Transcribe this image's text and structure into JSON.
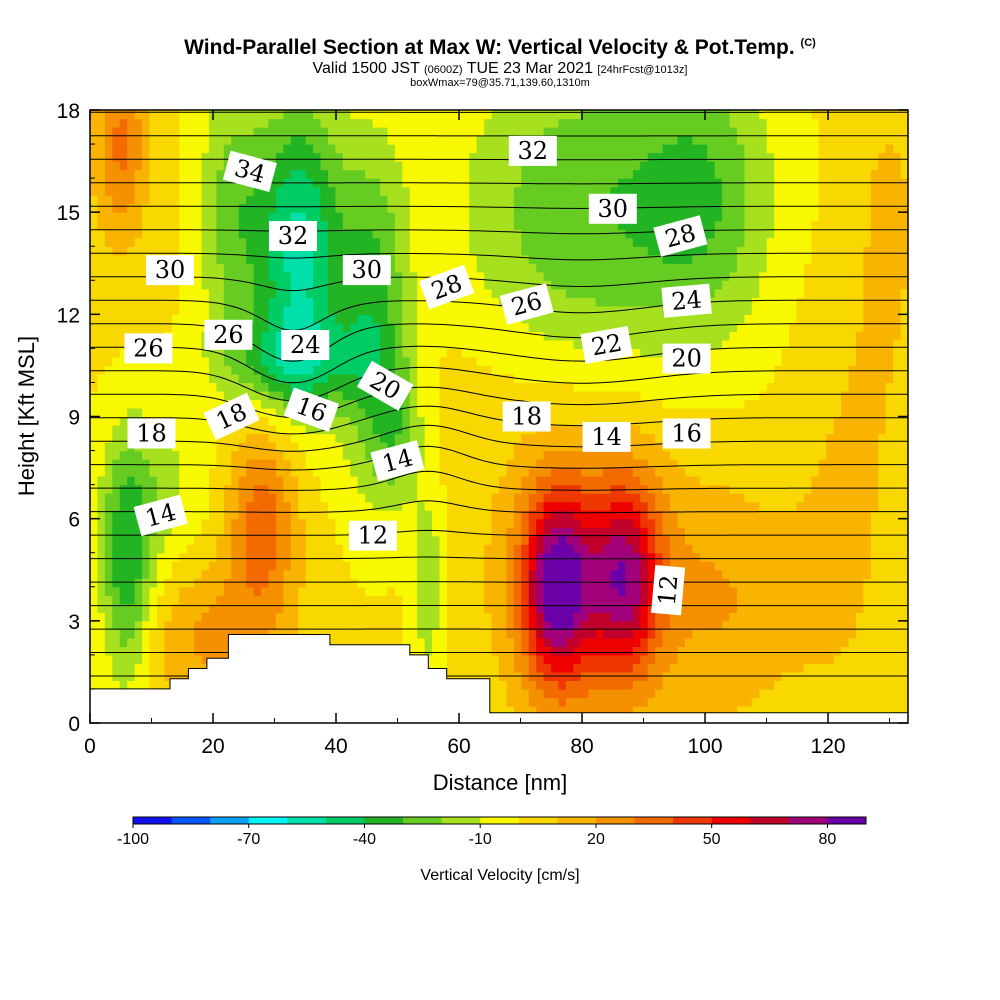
{
  "title": {
    "main": "Wind-Parallel Section at Max W: Vertical Velocity & Pot.Temp.",
    "copyright": "(C)",
    "valid_prefix": "Valid 1500 JST",
    "valid_utc": "(0600Z)",
    "valid_date": "TUE 23 Mar 2021",
    "forecast": "[24hrFcst@1013z]",
    "box": "boxWmax=79@35.71,139.60,1310m"
  },
  "chart_data": {
    "type": "heatmap",
    "xlabel": "Distance [nm]",
    "ylabel": "Height [Kft MSL]",
    "xlim": [
      0,
      133
    ],
    "ylim": [
      0,
      18
    ],
    "x_ticks": [
      "0",
      "20",
      "40",
      "60",
      "80",
      "100",
      "120"
    ],
    "y_ticks": [
      "0",
      "3",
      "6",
      "9",
      "12",
      "15",
      "18"
    ],
    "x_tick_values": [
      0,
      20,
      40,
      60,
      80,
      100,
      120
    ],
    "y_tick_values": [
      0,
      3,
      6,
      9,
      12,
      15,
      18
    ],
    "colorbar": {
      "label": "Vertical Velocity [cm/s]",
      "ticks": [
        "-100",
        "-70",
        "-40",
        "-10",
        "20",
        "50",
        "80"
      ],
      "tick_values": [
        -100,
        -70,
        -40,
        -10,
        20,
        50,
        80
      ],
      "range": [
        -100,
        90
      ],
      "colors": [
        "#1010ee",
        "#0555f5",
        "#0aa0f5",
        "#00f5f5",
        "#00e0a8",
        "#00cc66",
        "#22b422",
        "#66cc22",
        "#a6e01e",
        "#f8f800",
        "#f8d800",
        "#f8b400",
        "#f59000",
        "#f26a00",
        "#ee3800",
        "#ee0000",
        "#c0002a",
        "#a0007a",
        "#6c00a8"
      ]
    },
    "terrain": [
      [
        0,
        1.0
      ],
      [
        13,
        1.0
      ],
      [
        13,
        1.3
      ],
      [
        16,
        1.3
      ],
      [
        16,
        1.6
      ],
      [
        19,
        1.6
      ],
      [
        19,
        1.9
      ],
      [
        22.5,
        1.9
      ],
      [
        22.5,
        2.6
      ],
      [
        39,
        2.6
      ],
      [
        39,
        2.3
      ],
      [
        52,
        2.3
      ],
      [
        52,
        2.0
      ],
      [
        55,
        2.0
      ],
      [
        55,
        1.6
      ],
      [
        58,
        1.6
      ],
      [
        58,
        1.3
      ],
      [
        65,
        1.3
      ],
      [
        65,
        0.3
      ],
      [
        133,
        0.3
      ]
    ],
    "w_features": [
      {
        "x": 6,
        "y": 4.5,
        "sx": 3,
        "sy": 2.5,
        "amp": -38
      },
      {
        "x": 11,
        "y": 7.0,
        "sx": 6,
        "sy": 1.8,
        "amp": -15
      },
      {
        "x": 28,
        "y": 6.0,
        "sx": 4,
        "sy": 2.0,
        "amp": 35
      },
      {
        "x": 34,
        "y": 14.0,
        "sx": 5,
        "sy": 3.0,
        "amp": -55
      },
      {
        "x": 23,
        "y": 15.0,
        "sx": 4,
        "sy": 3.0,
        "amp": -25
      },
      {
        "x": 33,
        "y": 10.6,
        "sx": 8,
        "sy": 1.0,
        "amp": -30
      },
      {
        "x": 46,
        "y": 12.0,
        "sx": 4,
        "sy": 3.5,
        "amp": -35
      },
      {
        "x": 50,
        "y": 8.5,
        "sx": 3,
        "sy": 1.5,
        "amp": -20
      },
      {
        "x": 5,
        "y": 17.0,
        "sx": 3,
        "sy": 2.0,
        "amp": 30
      },
      {
        "x": 80,
        "y": 15.0,
        "sx": 14,
        "sy": 3.5,
        "amp": -30
      },
      {
        "x": 100,
        "y": 15.5,
        "sx": 8,
        "sy": 3.0,
        "amp": -25
      },
      {
        "x": 76,
        "y": 4.0,
        "sx": 4,
        "sy": 2.0,
        "amp": 72
      },
      {
        "x": 87,
        "y": 4.2,
        "sx": 4,
        "sy": 2.0,
        "amp": 55
      },
      {
        "x": 82,
        "y": 4.5,
        "sx": 11,
        "sy": 3.2,
        "amp": 25
      },
      {
        "x": 104,
        "y": 3.5,
        "sx": 7,
        "sy": 2.5,
        "amp": 15
      },
      {
        "x": 120,
        "y": 4.0,
        "sx": 6,
        "sy": 2.5,
        "amp": 10
      },
      {
        "x": 55,
        "y": 4.0,
        "sx": 2,
        "sy": 2.0,
        "amp": -20
      },
      {
        "x": 20,
        "y": 2.5,
        "sx": 8,
        "sy": 1.5,
        "amp": 20
      },
      {
        "x": 130,
        "y": 15.0,
        "sx": 4,
        "sy": 3.0,
        "amp": 10
      },
      {
        "x": 125,
        "y": 9.0,
        "sx": 6,
        "sy": 3.0,
        "amp": 8
      },
      {
        "x": 65,
        "y": 10.0,
        "sx": 10,
        "sy": 2.0,
        "amp": 4
      }
    ],
    "theta_labels": [
      {
        "text": "34",
        "x": 26,
        "y": 16.2,
        "rot": 15
      },
      {
        "text": "32",
        "x": 33,
        "y": 14.3,
        "rot": 0
      },
      {
        "text": "30",
        "x": 13,
        "y": 13.3,
        "rot": 0
      },
      {
        "text": "30",
        "x": 45,
        "y": 13.3,
        "rot": 0
      },
      {
        "text": "28",
        "x": 58,
        "y": 12.8,
        "rot": -20
      },
      {
        "text": "32",
        "x": 72,
        "y": 16.8,
        "rot": 0
      },
      {
        "text": "30",
        "x": 85,
        "y": 15.1,
        "rot": 0
      },
      {
        "text": "28",
        "x": 96,
        "y": 14.3,
        "rot": -15
      },
      {
        "text": "26",
        "x": 9.5,
        "y": 11.0,
        "rot": 0
      },
      {
        "text": "26",
        "x": 22.5,
        "y": 11.4,
        "rot": 0
      },
      {
        "text": "24",
        "x": 35,
        "y": 11.1,
        "rot": 0
      },
      {
        "text": "26",
        "x": 71,
        "y": 12.3,
        "rot": -15
      },
      {
        "text": "24",
        "x": 97,
        "y": 12.4,
        "rot": -5
      },
      {
        "text": "22",
        "x": 84,
        "y": 11.1,
        "rot": -10
      },
      {
        "text": "20",
        "x": 97,
        "y": 10.7,
        "rot": 0
      },
      {
        "text": "20",
        "x": 48,
        "y": 9.9,
        "rot": 30
      },
      {
        "text": "18",
        "x": 10,
        "y": 8.5,
        "rot": 0
      },
      {
        "text": "18",
        "x": 23,
        "y": 9.0,
        "rot": -25
      },
      {
        "text": "16",
        "x": 36,
        "y": 9.2,
        "rot": 20
      },
      {
        "text": "18",
        "x": 71,
        "y": 9.0,
        "rot": 0
      },
      {
        "text": "14",
        "x": 84,
        "y": 8.4,
        "rot": 0
      },
      {
        "text": "16",
        "x": 97,
        "y": 8.5,
        "rot": 0
      },
      {
        "text": "14",
        "x": 50,
        "y": 7.7,
        "rot": -15
      },
      {
        "text": "14",
        "x": 11.5,
        "y": 6.1,
        "rot": -15
      },
      {
        "text": "12",
        "x": 46,
        "y": 5.5,
        "rot": 0
      },
      {
        "text": "12",
        "x": 94,
        "y": 3.9,
        "rot": -85
      }
    ]
  }
}
